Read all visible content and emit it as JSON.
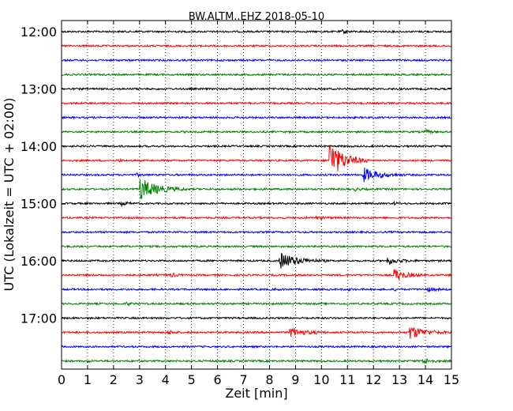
{
  "chart_data": {
    "type": "line",
    "title": "BW.ALTM..EHZ 2018-05-10",
    "xlabel": "Zeit  [min]",
    "ylabel": "UTC (Lokalzeit = UTC + 02:00)",
    "xlim": [
      0,
      15
    ],
    "x_ticks": [
      0,
      1,
      2,
      3,
      4,
      5,
      6,
      7,
      8,
      9,
      10,
      11,
      12,
      13,
      14,
      15
    ],
    "y_ticks": [
      "12:00",
      "13:00",
      "14:00",
      "15:00",
      "16:00",
      "17:00"
    ],
    "grid": true,
    "trace_interval_min": 15,
    "trace_colors": [
      "#000000",
      "#ff0000",
      "#0000ff",
      "#008000"
    ],
    "traces": [
      {
        "start": "12:00",
        "color": "#000000",
        "events": [
          {
            "t": 2.9,
            "amp": 0.15,
            "dur": 0.25
          },
          {
            "t": 10.8,
            "amp": 0.2,
            "dur": 0.6
          }
        ]
      },
      {
        "start": "12:15",
        "color": "#ff0000",
        "events": []
      },
      {
        "start": "12:30",
        "color": "#0000ff",
        "events": []
      },
      {
        "start": "12:45",
        "color": "#008000",
        "events": []
      },
      {
        "start": "13:00",
        "color": "#000000",
        "events": []
      },
      {
        "start": "13:15",
        "color": "#ff0000",
        "events": []
      },
      {
        "start": "13:30",
        "color": "#0000ff",
        "events": []
      },
      {
        "start": "13:45",
        "color": "#008000",
        "events": [
          {
            "t": 14.0,
            "amp": 0.25,
            "dur": 0.5
          }
        ]
      },
      {
        "start": "14:00",
        "color": "#000000",
        "events": []
      },
      {
        "start": "14:15",
        "color": "#ff0000",
        "events": [
          {
            "t": 2.2,
            "amp": 0.2,
            "dur": 0.3
          },
          {
            "t": 10.3,
            "amp": 2.8,
            "dur": 1.5
          }
        ]
      },
      {
        "start": "14:30",
        "color": "#0000ff",
        "events": [
          {
            "t": 2.9,
            "amp": 0.2,
            "dur": 0.4
          },
          {
            "t": 11.6,
            "amp": 1.0,
            "dur": 1.6
          }
        ]
      },
      {
        "start": "14:45",
        "color": "#008000",
        "events": [
          {
            "t": 3.0,
            "amp": 1.6,
            "dur": 1.8
          },
          {
            "t": 11.3,
            "amp": 0.2,
            "dur": 0.5
          }
        ]
      },
      {
        "start": "15:00",
        "color": "#000000",
        "events": [
          {
            "t": 2.3,
            "amp": 0.25,
            "dur": 0.6
          },
          {
            "t": 12.8,
            "amp": 0.15,
            "dur": 0.3
          }
        ]
      },
      {
        "start": "15:15",
        "color": "#ff0000",
        "events": [
          {
            "t": 9.8,
            "amp": 0.15,
            "dur": 1.0
          }
        ]
      },
      {
        "start": "15:30",
        "color": "#0000ff",
        "events": []
      },
      {
        "start": "15:45",
        "color": "#008000",
        "events": []
      },
      {
        "start": "16:00",
        "color": "#000000",
        "events": [
          {
            "t": 8.4,
            "amp": 1.2,
            "dur": 1.8
          },
          {
            "t": 12.5,
            "amp": 0.5,
            "dur": 1.2
          }
        ]
      },
      {
        "start": "16:15",
        "color": "#ff0000",
        "events": [
          {
            "t": 4.2,
            "amp": 0.25,
            "dur": 0.6
          },
          {
            "t": 12.8,
            "amp": 0.9,
            "dur": 1.1
          }
        ]
      },
      {
        "start": "16:30",
        "color": "#0000ff",
        "events": [
          {
            "t": 1.0,
            "amp": 0.15,
            "dur": 0.3
          },
          {
            "t": 8.2,
            "amp": 0.1,
            "dur": 0.4
          },
          {
            "t": 11.0,
            "amp": 0.15,
            "dur": 0.4
          },
          {
            "t": 12.8,
            "amp": 0.15,
            "dur": 0.4
          },
          {
            "t": 14.0,
            "amp": 0.3,
            "dur": 0.9
          }
        ]
      },
      {
        "start": "16:45",
        "color": "#008000",
        "events": [
          {
            "t": 2.5,
            "amp": 0.2,
            "dur": 0.4
          }
        ]
      },
      {
        "start": "17:00",
        "color": "#000000",
        "events": []
      },
      {
        "start": "17:15",
        "color": "#ff0000",
        "events": [
          {
            "t": 4.1,
            "amp": 0.25,
            "dur": 0.6
          },
          {
            "t": 8.8,
            "amp": 0.7,
            "dur": 1.4
          },
          {
            "t": 13.4,
            "amp": 1.0,
            "dur": 1.5
          }
        ]
      },
      {
        "start": "17:30",
        "color": "#0000ff",
        "events": []
      },
      {
        "start": "17:45",
        "color": "#008000",
        "events": [
          {
            "t": 1.0,
            "amp": 0.15,
            "dur": 0.3
          },
          {
            "t": 13.9,
            "amp": 0.45,
            "dur": 0.7
          }
        ]
      }
    ]
  }
}
